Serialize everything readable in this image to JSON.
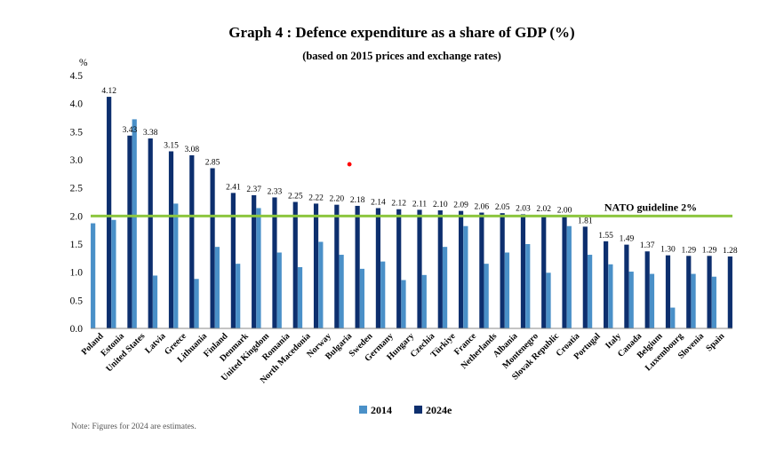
{
  "chart_data": {
    "type": "bar",
    "title": "Graph 4 : Defence expenditure as a share of GDP (%)",
    "subtitle": "(based on 2015 prices and exchange rates)",
    "ylabel": "%",
    "ylim": [
      0,
      4.5
    ],
    "yticks": [
      "0.0",
      "0.5",
      "1.0",
      "1.5",
      "2.0",
      "2.5",
      "3.0",
      "3.5",
      "4.0",
      "4.5"
    ],
    "grid": false,
    "legend_position": "bottom",
    "categories": [
      "Poland",
      "Estonia",
      "United States",
      "Latvia",
      "Greece",
      "Lithuania",
      "Finland",
      "Denmark",
      "United Kingdom",
      "Romania",
      "North Macedonia",
      "Norway",
      "Bulgaria",
      "Sweden",
      "Germany",
      "Hungary",
      "Czechia",
      "Türkiye",
      "France",
      "Netherlands",
      "Albania",
      "Montenegro",
      "Slovak Republic",
      "Croatia",
      "Portugal",
      "Italy",
      "Canada",
      "Belgium",
      "Luxembourg",
      "Slovenia",
      "Spain"
    ],
    "series": [
      {
        "name": "2014",
        "color": "#4a90c8",
        "values": [
          1.87,
          1.93,
          3.72,
          0.94,
          2.22,
          0.88,
          1.45,
          1.15,
          2.14,
          1.35,
          1.09,
          1.54,
          1.31,
          1.06,
          1.19,
          0.86,
          0.95,
          1.45,
          1.82,
          1.15,
          1.35,
          1.5,
          0.99,
          1.82,
          1.31,
          1.14,
          1.01,
          0.97,
          0.37,
          0.97,
          0.92
        ]
      },
      {
        "name": "2024e",
        "color": "#0d2f6e",
        "values": [
          4.12,
          3.43,
          3.38,
          3.15,
          3.08,
          2.85,
          2.41,
          2.37,
          2.33,
          2.25,
          2.22,
          2.2,
          2.18,
          2.14,
          2.12,
          2.11,
          2.1,
          2.09,
          2.06,
          2.05,
          2.03,
          2.02,
          2.0,
          1.81,
          1.55,
          1.49,
          1.37,
          1.3,
          1.29,
          1.29,
          1.28
        ],
        "labels": [
          "4.12",
          "3.43",
          "3.38",
          "3.15",
          "3.08",
          "2.85",
          "2.41",
          "2.37",
          "2.33",
          "2.25",
          "2.22",
          "2.20",
          "2.18",
          "2.14",
          "2.12",
          "2.11",
          "2.10",
          "2.09",
          "2.06",
          "2.05",
          "2.03",
          "2.02",
          "2.00",
          "1.81",
          "1.55",
          "1.49",
          "1.37",
          "1.30",
          "1.29",
          "1.29",
          "1.28"
        ]
      }
    ],
    "reference_line": {
      "value": 2.0,
      "label": "NATO guideline 2%",
      "color": "#8dc63f"
    },
    "annotation_dot": {
      "x": "Bulgaria",
      "y": 2.92,
      "color": "#ff0000"
    }
  },
  "note": "Note: Figures for 2024 are estimates."
}
